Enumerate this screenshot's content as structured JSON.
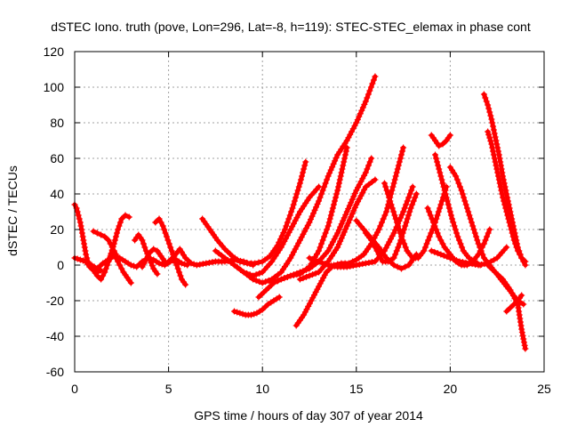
{
  "chart_data": {
    "type": "scatter",
    "title": "dSTEC Iono. truth (pove, Lon=296, Lat=-8, h=119): STEC-STEC_elemax in phase cont",
    "xlabel": "GPS time / hours of day 307 of year 2014",
    "ylabel": "dSTEC  / TECUs",
    "xlim": [
      0,
      25
    ],
    "ylim": [
      -60,
      120
    ],
    "xticks": [
      0,
      5,
      10,
      15,
      20,
      25
    ],
    "yticks": [
      -60,
      -40,
      -20,
      0,
      20,
      40,
      60,
      80,
      100,
      120
    ],
    "xtick_labels": [
      "0",
      "5",
      "10",
      "15",
      "20",
      "25"
    ],
    "ytick_labels": [
      "-60",
      "-40",
      "-20",
      "0",
      "20",
      "40",
      "60",
      "80",
      "100",
      "120"
    ],
    "grid": true,
    "legend": "none",
    "series_color": "#ff0000",
    "marker": "plus",
    "series": [
      {
        "x": [
          0.0,
          0.3,
          0.6,
          0.9,
          1.2,
          1.5,
          1.8,
          2.1,
          2.4,
          2.7,
          3.0,
          3.3,
          3.6,
          3.9,
          4.2,
          4.5,
          4.8,
          5.1,
          5.4,
          5.7,
          6.0
        ],
        "y": [
          4,
          3,
          2,
          0,
          -2,
          1,
          3,
          5,
          4,
          2,
          0,
          -1,
          2,
          4,
          3,
          1,
          0,
          2,
          3,
          1,
          0
        ]
      },
      {
        "x": [
          0.0,
          0.1,
          0.2,
          0.3,
          0.4,
          0.5,
          0.6,
          0.7,
          0.8,
          1.0,
          1.2,
          1.4
        ],
        "y": [
          34,
          32,
          28,
          24,
          18,
          12,
          6,
          2,
          -1,
          -3,
          -4,
          -3
        ]
      },
      {
        "x": [
          0.6,
          0.8,
          1.0,
          1.2,
          1.4,
          1.6,
          1.8,
          2.0
        ],
        "y": [
          2,
          -1,
          -3,
          -6,
          -8,
          -4,
          2,
          8
        ]
      },
      {
        "x": [
          1.0,
          1.2,
          1.4,
          1.6,
          1.8,
          2.0,
          2.2
        ],
        "y": [
          19,
          18,
          17,
          16,
          14,
          10,
          6
        ]
      },
      {
        "x": [
          1.7,
          1.9,
          2.1,
          2.3,
          2.5,
          2.7,
          2.9
        ],
        "y": [
          0,
          5,
          12,
          20,
          26,
          28,
          27
        ]
      },
      {
        "x": [
          2.2,
          2.4,
          2.6,
          2.8,
          3.0
        ],
        "y": [
          4,
          0,
          -4,
          -7,
          -10
        ]
      },
      {
        "x": [
          3.2,
          3.4,
          3.6,
          3.8,
          4.0,
          4.2,
          4.4
        ],
        "y": [
          14,
          17,
          14,
          8,
          3,
          -2,
          -5
        ]
      },
      {
        "x": [
          3.6,
          3.8,
          4.0,
          4.2,
          4.4,
          4.6,
          4.8
        ],
        "y": [
          -1,
          3,
          7,
          9,
          8,
          5,
          2
        ]
      },
      {
        "x": [
          4.3,
          4.5,
          4.7,
          4.9,
          5.1,
          5.3,
          5.5,
          5.7,
          5.9
        ],
        "y": [
          24,
          26,
          22,
          16,
          10,
          4,
          -2,
          -8,
          -11
        ]
      },
      {
        "x": [
          5.0,
          5.3,
          5.6,
          5.9,
          6.2,
          6.5,
          7.0,
          7.5,
          8.0,
          8.5,
          9.0,
          9.5
        ],
        "y": [
          2,
          5,
          9,
          4,
          1,
          0,
          1,
          2,
          2,
          3,
          2,
          0
        ]
      },
      {
        "x": [
          6.8,
          7.2,
          7.6,
          8.0,
          8.4,
          8.8,
          9.2,
          9.6,
          10.0,
          10.4,
          10.8,
          11.2,
          11.6,
          12.0,
          12.3
        ],
        "y": [
          26,
          20,
          14,
          9,
          5,
          2,
          1,
          1,
          2,
          5,
          11,
          20,
          32,
          46,
          58
        ]
      },
      {
        "x": [
          7.5,
          8.0,
          8.5,
          9.0,
          9.5,
          10.0,
          10.5,
          11.0,
          11.5,
          12.0,
          12.5,
          13.0
        ],
        "y": [
          8,
          4,
          0,
          -4,
          -6,
          -4,
          2,
          10,
          20,
          30,
          38,
          44
        ]
      },
      {
        "x": [
          8.5,
          8.8,
          9.1,
          9.4,
          9.7,
          10.0,
          10.3,
          10.6,
          10.9
        ],
        "y": [
          -26,
          -27,
          -28,
          -28,
          -27,
          -25,
          -22,
          -20,
          -18
        ]
      },
      {
        "x": [
          8.5,
          9.0,
          9.5,
          10.0,
          10.5,
          11.0,
          11.5,
          12.0,
          12.5,
          13.0,
          13.5,
          14.0,
          14.5,
          15.0,
          15.5,
          16.0
        ],
        "y": [
          0,
          -4,
          -8,
          -10,
          -8,
          -4,
          4,
          14,
          24,
          36,
          50,
          62,
          70,
          80,
          92,
          106
        ]
      },
      {
        "x": [
          9.8,
          10.2,
          10.6,
          11.0,
          11.5,
          12.0,
          12.5,
          13.0,
          13.5,
          14.0,
          14.5,
          15.0,
          15.5,
          15.8
        ],
        "y": [
          -18,
          -14,
          -10,
          -8,
          -6,
          -4,
          -2,
          2,
          8,
          18,
          30,
          42,
          52,
          60
        ]
      },
      {
        "x": [
          10.5,
          11.0,
          11.5,
          12.0,
          12.5,
          13.0,
          13.5,
          14.0,
          14.5
        ],
        "y": [
          -10,
          -8,
          -6,
          -5,
          -1,
          8,
          22,
          42,
          66
        ]
      },
      {
        "x": [
          11.8,
          12.2,
          12.6,
          13.0,
          13.4,
          13.8,
          14.2,
          14.6,
          15.0,
          15.4,
          15.8,
          16.2,
          16.6,
          17.0,
          17.5
        ],
        "y": [
          -34,
          -28,
          -20,
          -12,
          -4,
          0,
          1,
          1,
          3,
          6,
          12,
          20,
          30,
          46,
          66
        ]
      },
      {
        "x": [
          12.0,
          12.5,
          13.0,
          13.5,
          14.0,
          14.5,
          15.0,
          15.5,
          16.0
        ],
        "y": [
          -8,
          -6,
          -4,
          2,
          10,
          22,
          34,
          44,
          48
        ]
      },
      {
        "x": [
          12.5,
          13.0,
          13.5,
          14.0,
          14.5,
          15.0,
          15.5,
          16.0,
          16.5,
          17.0,
          17.5,
          18.0
        ],
        "y": [
          4,
          2,
          0,
          -1,
          -1,
          0,
          1,
          2,
          8,
          18,
          30,
          44
        ]
      },
      {
        "x": [
          15.0,
          15.4,
          15.8,
          16.2,
          16.6,
          17.0,
          17.4,
          17.8,
          18.2
        ],
        "y": [
          25,
          20,
          15,
          10,
          4,
          0,
          -2,
          0,
          6
        ]
      },
      {
        "x": [
          15.5,
          15.8,
          16.1,
          16.4,
          16.7,
          17.0,
          17.3,
          17.6,
          17.9,
          18.2
        ],
        "y": [
          18,
          14,
          8,
          2,
          2,
          4,
          12,
          22,
          32,
          40
        ]
      },
      {
        "x": [
          16.5,
          16.8,
          17.1,
          17.4,
          17.7,
          18.0,
          18.3,
          18.6,
          18.9,
          19.2,
          19.5,
          19.8
        ],
        "y": [
          46,
          36,
          26,
          16,
          8,
          4,
          4,
          8,
          16,
          24,
          34,
          44
        ]
      },
      {
        "x": [
          18.8,
          19.1,
          19.4,
          19.7,
          20.0,
          20.3,
          20.6,
          20.9,
          21.2,
          21.5,
          21.8,
          22.1
        ],
        "y": [
          32,
          24,
          16,
          10,
          6,
          2,
          0,
          0,
          2,
          6,
          12,
          20
        ]
      },
      {
        "x": [
          19.0,
          19.2,
          19.4,
          19.6,
          19.8,
          20.0
        ],
        "y": [
          73,
          70,
          67,
          68,
          70,
          73
        ]
      },
      {
        "x": [
          19.2,
          19.5,
          19.8,
          20.1,
          20.4,
          20.7,
          21.0,
          21.3,
          21.6
        ],
        "y": [
          62,
          50,
          38,
          26,
          16,
          8,
          4,
          2,
          0
        ]
      },
      {
        "x": [
          19.0,
          19.5,
          20.0,
          20.5,
          21.0,
          21.5,
          22.0,
          22.5,
          23.0
        ],
        "y": [
          8,
          6,
          4,
          2,
          1,
          0,
          1,
          4,
          10
        ]
      },
      {
        "x": [
          20.0,
          20.3,
          20.6,
          20.9,
          21.2,
          21.5,
          21.8,
          22.1,
          22.4,
          22.7,
          23.0,
          23.3,
          23.6,
          23.9
        ],
        "y": [
          55,
          50,
          42,
          32,
          22,
          12,
          4,
          0,
          -4,
          -8,
          -12,
          -16,
          -20,
          -22
        ]
      },
      {
        "x": [
          21.8,
          22.0,
          22.2,
          22.4,
          22.6,
          22.8,
          23.0,
          23.2,
          23.4,
          23.6,
          23.8,
          24.0
        ],
        "y": [
          96,
          90,
          82,
          72,
          62,
          50,
          40,
          30,
          20,
          10,
          4,
          0
        ]
      },
      {
        "x": [
          22.0,
          22.2,
          22.4,
          22.6,
          22.8,
          23.0,
          23.2,
          23.4,
          23.6,
          23.8,
          24.0
        ],
        "y": [
          75,
          68,
          58,
          48,
          38,
          30,
          22,
          14,
          8,
          4,
          2
        ]
      },
      {
        "x": [
          22.0,
          22.4,
          22.8,
          23.2,
          23.6,
          23.8,
          24.0
        ],
        "y": [
          0,
          -4,
          -8,
          -14,
          -22,
          -36,
          -47
        ]
      },
      {
        "x": [
          23.0,
          23.2,
          23.4,
          23.6,
          23.8
        ],
        "y": [
          -26,
          -24,
          -22,
          -20,
          -17
        ]
      }
    ]
  }
}
